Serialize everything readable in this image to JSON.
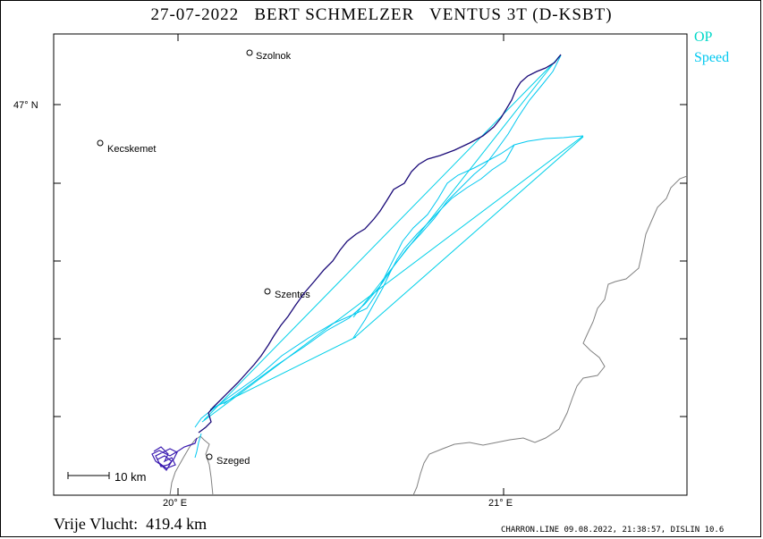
{
  "title": "27-07-2022   BERT SCHMELZER   VENTUS 3T (D-KSBT)",
  "legend": {
    "op": "OP",
    "speed": "Speed"
  },
  "axes": {
    "lat_label": "47° N",
    "lon_labels": [
      "20° E",
      "21° E"
    ]
  },
  "towns": [
    {
      "name": "Szolnok"
    },
    {
      "name": "Kecskemet"
    },
    {
      "name": "Szentes"
    },
    {
      "name": "Szeged"
    }
  ],
  "scale_bar": {
    "label": "10 km"
  },
  "footer": {
    "distance": "Vrije Vlucht:  419.4 km",
    "credit": "CHARRON.LINE 09.08.2022, 21:38:57, DISLIN 10.6"
  },
  "colors": {
    "track": "#1a0a78",
    "op": "#00d8c8",
    "speed": "#00c8f0",
    "border": "#808080"
  }
}
